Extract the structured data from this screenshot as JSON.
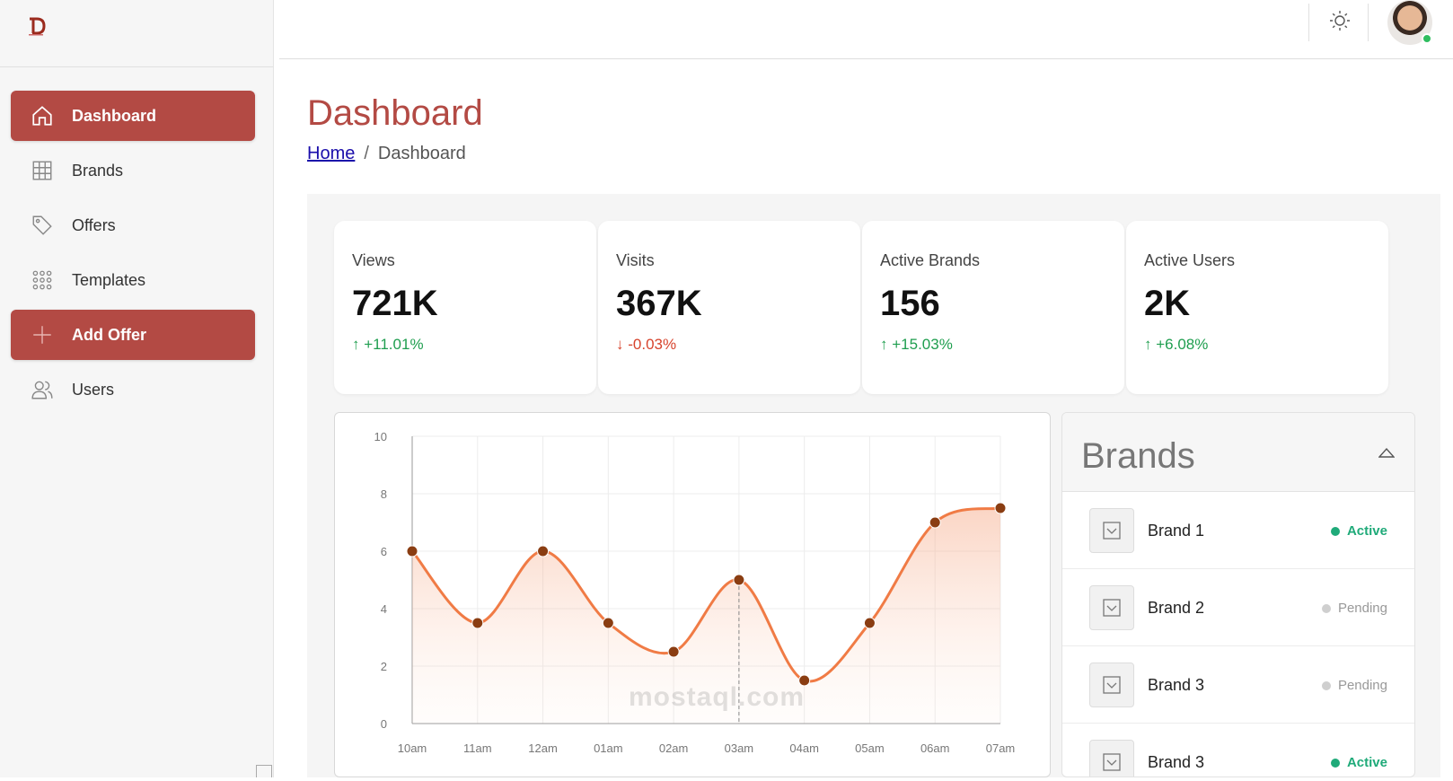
{
  "sidebar": {
    "items": [
      {
        "label": "Dashboard",
        "icon": "home-icon",
        "active": true
      },
      {
        "label": "Brands",
        "icon": "grid-icon",
        "active": false
      },
      {
        "label": "Offers",
        "icon": "tag-icon",
        "active": false
      },
      {
        "label": "Templates",
        "icon": "dots-grid-icon",
        "active": false
      },
      {
        "label": "Add Offer",
        "icon": "plus-icon",
        "active": true
      },
      {
        "label": "Users",
        "icon": "users-icon",
        "active": false
      }
    ]
  },
  "header": {
    "theme_icon": "sun-icon",
    "status_color": "#2ebd5f"
  },
  "page": {
    "title": "Dashboard",
    "breadcrumb": {
      "home": "Home",
      "current": "Dashboard"
    }
  },
  "stats": [
    {
      "label": "Views",
      "value": "721K",
      "change": "+11.01%",
      "direction": "up"
    },
    {
      "label": "Visits",
      "value": "367K",
      "change": "-0.03%",
      "direction": "down"
    },
    {
      "label": "Active Brands",
      "value": "156",
      "change": "+15.03%",
      "direction": "up"
    },
    {
      "label": "Active Users",
      "value": "2K",
      "change": "+6.08%",
      "direction": "up"
    }
  ],
  "chart_data": {
    "type": "area",
    "categories": [
      "10am",
      "11am",
      "12am",
      "01am",
      "02am",
      "03am",
      "04am",
      "05am",
      "06am",
      "07am"
    ],
    "values": [
      6,
      3.5,
      6,
      3.5,
      2.5,
      5,
      1.5,
      3.5,
      7,
      7.5
    ],
    "yticks": [
      0,
      2,
      4,
      6,
      8,
      10
    ],
    "ylim": [
      0,
      10
    ],
    "grid": true,
    "line_color": "#f07b45",
    "point_color": "#8a3d12"
  },
  "brands_panel": {
    "title": "Brands",
    "rows": [
      {
        "name": "Brand 1",
        "status": "Active"
      },
      {
        "name": "Brand 2",
        "status": "Pending"
      },
      {
        "name": "Brand 3",
        "status": "Pending"
      },
      {
        "name": "Brand 3",
        "status": "Active"
      }
    ]
  },
  "watermark": "mostaql.com"
}
